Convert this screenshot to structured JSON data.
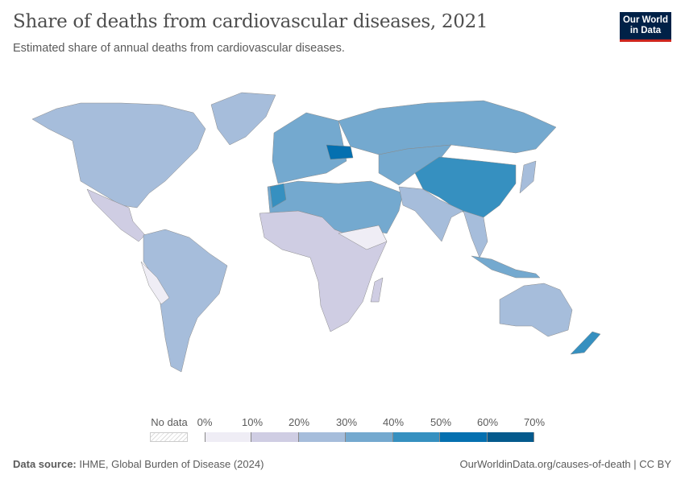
{
  "header": {
    "title": "Share of deaths from cardiovascular diseases, 2021",
    "subtitle": "Estimated share of annual deaths from cardiovascular diseases.",
    "logo_text": "Our World in Data"
  },
  "legend": {
    "no_data_label": "No data",
    "ticks": [
      "0%",
      "10%",
      "20%",
      "30%",
      "40%",
      "50%",
      "60%",
      "70%"
    ],
    "bin_colors": [
      "#efedf5",
      "#cfcde3",
      "#a6bddb",
      "#74a9cf",
      "#3690c0",
      "#0570b0",
      "#045a8d"
    ]
  },
  "footer": {
    "source_label": "Data source:",
    "source_text": "IHME, Global Burden of Disease (2024)",
    "link": "OurWorldinData.org/causes-of-death | CC BY"
  }
}
